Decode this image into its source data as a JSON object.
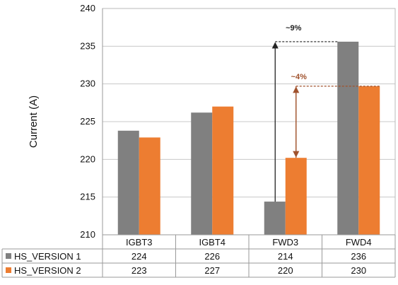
{
  "chart_data": {
    "type": "bar",
    "ylabel": "Current (A)",
    "ylim": [
      210,
      240
    ],
    "yticks": [
      210,
      215,
      220,
      225,
      230,
      235,
      240
    ],
    "grid": true,
    "categories": [
      "IGBT3",
      "IGBT4",
      "FWD3",
      "FWD4"
    ],
    "series": [
      {
        "name": "HS_VERSION 1",
        "color": "#808080",
        "values": [
          223.8,
          226.2,
          214.4,
          235.6
        ],
        "table_values": [
          "224",
          "226",
          "214",
          "236"
        ]
      },
      {
        "name": "HS_VERSION 2",
        "color": "#ed7d31",
        "values": [
          222.9,
          227.0,
          220.2,
          229.7
        ],
        "table_values": [
          "223",
          "227",
          "220",
          "230"
        ]
      }
    ],
    "annotations": [
      {
        "text": "~9%",
        "from": 214.4,
        "to": 235.6,
        "category": "FWD3",
        "color": "#222222"
      },
      {
        "text": "~4%",
        "from": 220.2,
        "to": 229.7,
        "category": "FWD3",
        "color": "#a0522d"
      }
    ]
  }
}
